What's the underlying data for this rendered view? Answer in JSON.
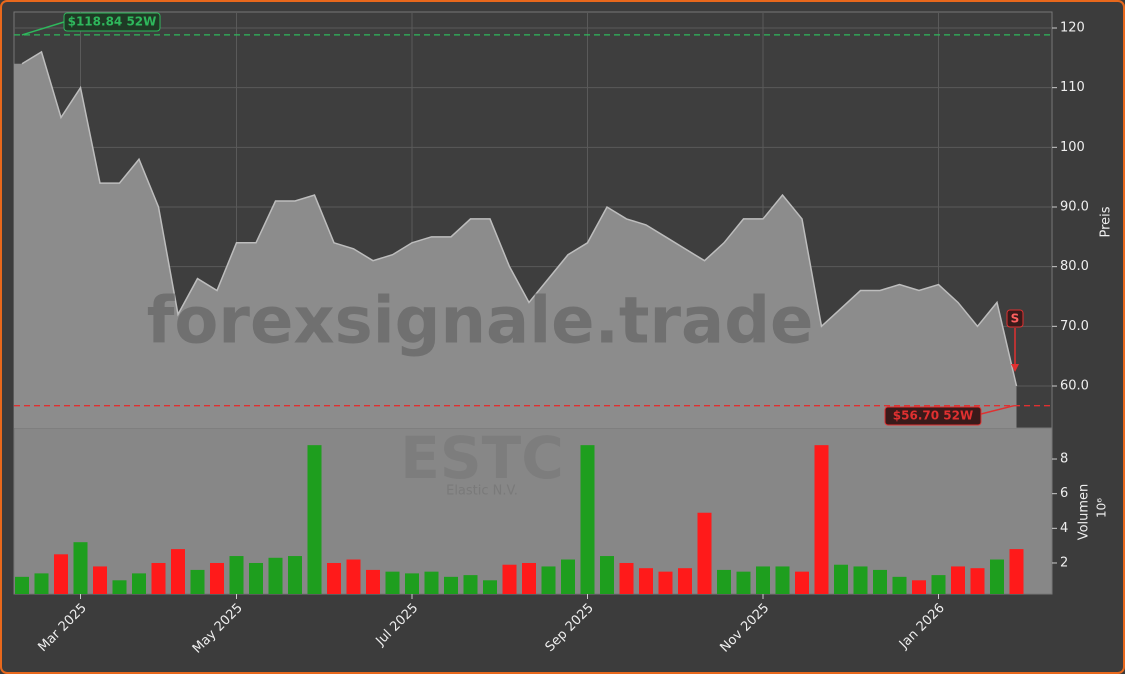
{
  "chart_data": [
    {
      "type": "area",
      "ylabel": "Preis",
      "watermark": "forexsignale.trade",
      "ticker": "ESTC",
      "company": "Elastic N.V.",
      "categories": [
        null,
        null,
        null,
        "Mar 2025",
        null,
        null,
        null,
        null,
        null,
        null,
        null,
        "May 2025",
        null,
        null,
        null,
        null,
        null,
        null,
        null,
        null,
        "Jul 2025",
        null,
        null,
        null,
        null,
        null,
        null,
        null,
        null,
        "Sep 2025",
        null,
        null,
        null,
        null,
        null,
        null,
        null,
        null,
        "Nov 2025",
        null,
        null,
        null,
        null,
        null,
        null,
        null,
        null,
        "Jan 2026",
        null,
        null,
        null,
        null
      ],
      "values": [
        114,
        116,
        105,
        110,
        94,
        94,
        98,
        90,
        72,
        78,
        76,
        84,
        84,
        91,
        91,
        92,
        84,
        83,
        81,
        82,
        84,
        85,
        85,
        88,
        88,
        80,
        74,
        78,
        82,
        84,
        90,
        88,
        87,
        85,
        83,
        81,
        84,
        88,
        88,
        92,
        88,
        70,
        73,
        76,
        76,
        77,
        76,
        77,
        74,
        70,
        74,
        60
      ],
      "color": "#8c8c8c",
      "line_color": "#bdbdbd",
      "ylim": [
        52.96,
        122.68
      ],
      "yticks": [
        {
          "value": 60,
          "label": "60.0"
        },
        {
          "value": 70,
          "label": "70.0"
        },
        {
          "value": 80,
          "label": "80.0"
        },
        {
          "value": 90,
          "label": "90.0"
        },
        100,
        110,
        120
      ],
      "grid": true,
      "annotations": [
        {
          "label": "$118.84 52W",
          "value": 118.84,
          "color": "#2eb85c"
        },
        {
          "label": "$56.70 52W",
          "value": 56.7,
          "color": "#e03030"
        }
      ],
      "signal": "S"
    },
    {
      "type": "bar",
      "ylabel": "Volumen",
      "offset_label": "10⁶",
      "values": [
        1.2,
        1.4,
        2.5,
        3.2,
        1.8,
        1.0,
        1.4,
        2.0,
        2.8,
        1.6,
        2.0,
        2.4,
        2.0,
        2.3,
        2.4,
        8.8,
        2.0,
        2.2,
        1.6,
        1.5,
        1.4,
        1.5,
        1.2,
        1.3,
        1.0,
        1.9,
        2.0,
        1.8,
        2.2,
        8.8,
        2.4,
        2.0,
        1.7,
        1.5,
        1.7,
        4.9,
        1.6,
        1.5,
        1.8,
        1.8,
        1.5,
        8.8,
        1.9,
        1.8,
        1.6,
        1.2,
        1.0,
        1.3,
        1.8,
        1.7,
        2.2,
        2.8
      ],
      "up_color": "#1e9e1e",
      "down_color": "#ff1a1a",
      "ylim": [
        0.21,
        9.79
      ],
      "yticks": [
        2,
        4,
        6,
        8
      ]
    }
  ]
}
